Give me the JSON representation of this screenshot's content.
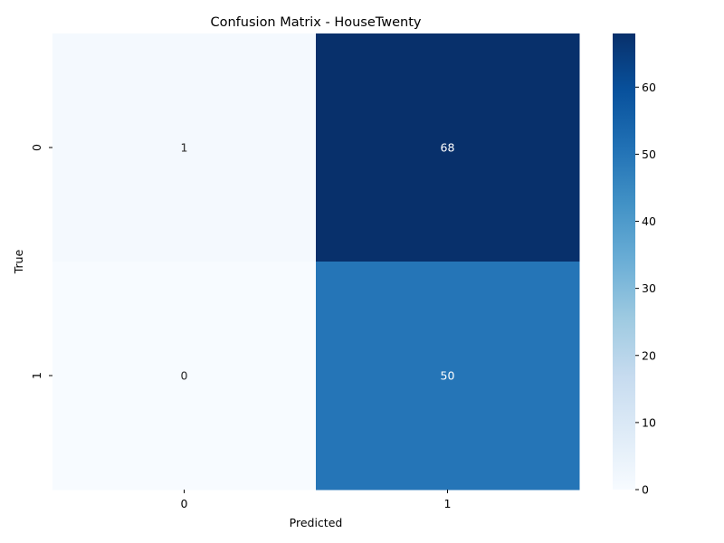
{
  "chart_data": {
    "type": "heatmap",
    "title": "Confusion Matrix - HouseTwenty",
    "xlabel": "Predicted",
    "ylabel": "True",
    "x_categories": [
      "0",
      "1"
    ],
    "y_categories": [
      "0",
      "1"
    ],
    "values": [
      [
        1,
        68
      ],
      [
        0,
        50
      ]
    ],
    "colormap": "Blues",
    "colorbar": {
      "range": [
        0,
        68
      ],
      "ticks": [
        0,
        10,
        20,
        30,
        40,
        50,
        60
      ]
    },
    "annotations": true,
    "grid": false
  }
}
